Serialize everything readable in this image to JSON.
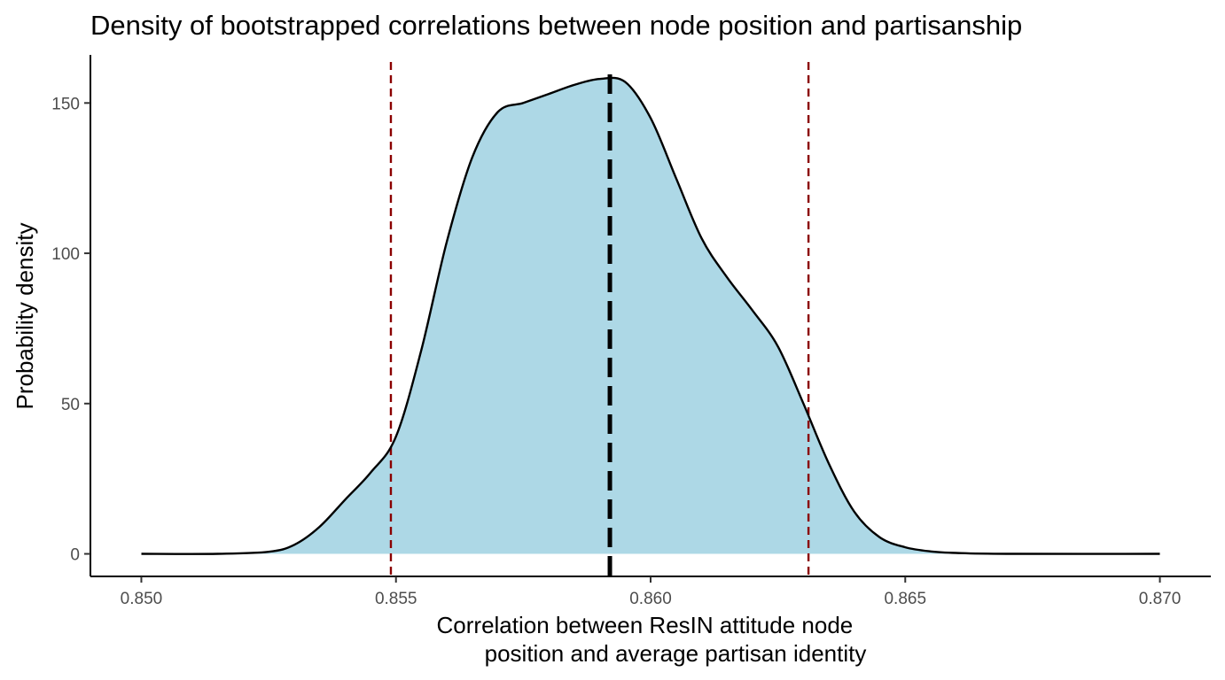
{
  "chart_data": {
    "type": "area",
    "title": "Density of bootstrapped correlations between node position and partisanship",
    "xlabel_lines": [
      "Correlation between ResIN attitude node",
      "position and average partisan identity"
    ],
    "ylabel": "Probability density",
    "xlim": [
      0.849,
      0.871
    ],
    "ylim": [
      -7.5,
      166
    ],
    "x_ticks": [
      0.85,
      0.855,
      0.86,
      0.865,
      0.87
    ],
    "x_tick_labels": [
      "0.850",
      "0.855",
      "0.860",
      "0.865",
      "0.870"
    ],
    "y_ticks": [
      0,
      50,
      100,
      150
    ],
    "y_tick_labels": [
      "0",
      "50",
      "100",
      "150"
    ],
    "grid": false,
    "legend": "none",
    "fill_color": "#add8e6",
    "line_color": "#000000",
    "series": [
      {
        "x": [
          0.85,
          0.8515,
          0.8525,
          0.853,
          0.8535,
          0.854,
          0.8545,
          0.855,
          0.8555,
          0.856,
          0.8565,
          0.857,
          0.8575,
          0.858,
          0.8585,
          0.859,
          0.8595,
          0.86,
          0.8605,
          0.861,
          0.8615,
          0.862,
          0.8625,
          0.863,
          0.8635,
          0.864,
          0.8645,
          0.865,
          0.8655,
          0.866,
          0.867,
          0.87
        ],
        "values": [
          0,
          0,
          0.7,
          3,
          9,
          18,
          27,
          39,
          68,
          104,
          132,
          147,
          150,
          153,
          156,
          158,
          157,
          145,
          125,
          105,
          92,
          81,
          69,
          50,
          30,
          14,
          5.5,
          2.2,
          0.8,
          0.3,
          0,
          0
        ]
      }
    ],
    "reference_lines": [
      {
        "x": 0.8592,
        "style": "dashed-thick",
        "color": "#000000"
      },
      {
        "x": 0.8549,
        "style": "dashed",
        "color": "#8b0000"
      },
      {
        "x": 0.8631,
        "style": "dashed",
        "color": "#8b0000"
      }
    ]
  }
}
